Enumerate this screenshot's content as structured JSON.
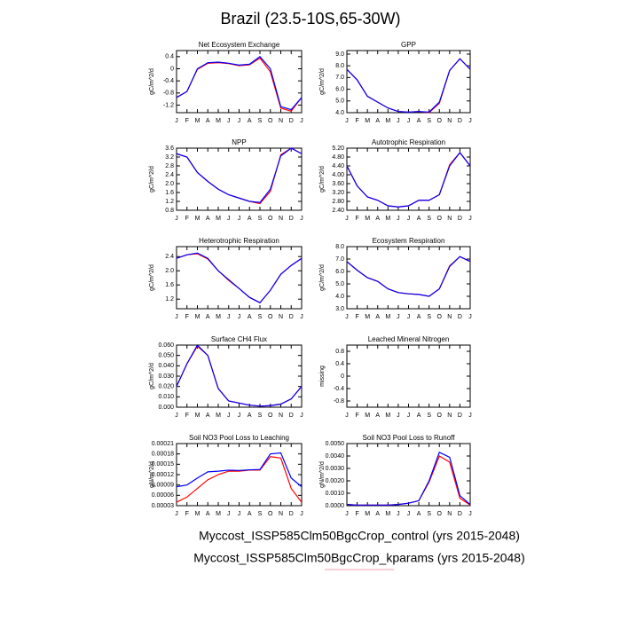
{
  "title": "Brazil (23.5-10S,65-30W)",
  "footer": [
    "Myccost_ISSP585Clm50BgcCrop_control (yrs 2015-2048)",
    "Myccost_ISSP585Clm50BgcCrop_kparams (yrs 2015-2048)"
  ],
  "chart_data": [
    {
      "type": "line",
      "title": "Net Ecosystem Exchange",
      "y_label": "gC/m^2/d",
      "categories": [
        "J",
        "F",
        "M",
        "A",
        "M",
        "J",
        "J",
        "A",
        "S",
        "O",
        "N",
        "D",
        "J"
      ],
      "ylim": [
        -1.45,
        0.6
      ],
      "yticks": [
        0.4,
        0,
        -0.4,
        -0.8,
        -1.2
      ],
      "series": [
        {
          "color": "#0000ff",
          "values": [
            -0.95,
            -0.75,
            0.0,
            0.2,
            0.22,
            0.18,
            0.12,
            0.15,
            0.4,
            0.0,
            -1.25,
            -1.35,
            -0.95
          ]
        },
        {
          "color": "#ff0000",
          "values": [
            -0.95,
            -0.75,
            -0.02,
            0.18,
            0.2,
            0.17,
            0.1,
            0.13,
            0.35,
            -0.1,
            -1.3,
            -1.4,
            -0.95
          ]
        }
      ]
    },
    {
      "type": "line",
      "title": "GPP",
      "y_label": "gC/m^2/d",
      "categories": [
        "J",
        "F",
        "M",
        "A",
        "M",
        "J",
        "J",
        "A",
        "S",
        "O",
        "N",
        "D",
        "J"
      ],
      "ylim": [
        4.0,
        9.3
      ],
      "yticks": [
        {
          "value": 9,
          "label": "9.0"
        },
        {
          "value": 8,
          "label": "8.0"
        },
        {
          "value": 7,
          "label": "7.0"
        },
        {
          "value": 6,
          "label": "6.0"
        },
        {
          "value": 5,
          "label": "5.0"
        },
        {
          "value": 4,
          "label": "4.0"
        }
      ],
      "series": [
        {
          "color": "#0000ff",
          "values": [
            7.7,
            6.8,
            5.4,
            4.9,
            4.4,
            4.1,
            4.05,
            4.1,
            4.05,
            4.9,
            7.6,
            8.6,
            7.7
          ]
        },
        {
          "color": "#ff0000",
          "values": [
            7.7,
            6.8,
            5.4,
            4.9,
            4.4,
            4.1,
            4.05,
            4.1,
            4.0,
            4.8,
            7.6,
            8.6,
            7.7
          ]
        }
      ]
    },
    {
      "type": "line",
      "title": "NPP",
      "y_label": "gC/m^2/d",
      "categories": [
        "J",
        "F",
        "M",
        "A",
        "M",
        "J",
        "J",
        "A",
        "S",
        "O",
        "N",
        "D",
        "J"
      ],
      "ylim": [
        0.8,
        3.6
      ],
      "yticks": [
        3.6,
        3.2,
        2.8,
        2.4,
        {
          "value": 2,
          "label": "2.0"
        },
        1.6,
        1.2,
        0.8
      ],
      "series": [
        {
          "color": "#0000ff",
          "values": [
            3.35,
            3.2,
            2.5,
            2.1,
            1.75,
            1.5,
            1.35,
            1.2,
            1.15,
            1.75,
            3.25,
            3.6,
            3.35
          ]
        },
        {
          "color": "#ff0000",
          "values": [
            3.35,
            3.2,
            2.5,
            2.1,
            1.75,
            1.5,
            1.35,
            1.2,
            1.1,
            1.65,
            3.3,
            3.6,
            3.35
          ]
        }
      ]
    },
    {
      "type": "line",
      "title": "Autotrophic Respiration",
      "y_label": "gC/m^2/d",
      "categories": [
        "J",
        "F",
        "M",
        "A",
        "M",
        "J",
        "J",
        "A",
        "S",
        "O",
        "N",
        "D",
        "J"
      ],
      "ylim": [
        2.4,
        5.2
      ],
      "yticks": [
        {
          "value": 5.2,
          "label": "5.20"
        },
        {
          "value": 4.8,
          "label": "4.80"
        },
        {
          "value": 4.4,
          "label": "4.40"
        },
        {
          "value": 4,
          "label": "4.00"
        },
        {
          "value": 3.6,
          "label": "3.60"
        },
        {
          "value": 3.2,
          "label": "3.20"
        },
        {
          "value": 2.8,
          "label": "2.80"
        },
        {
          "value": 2.4,
          "label": "2.40"
        }
      ],
      "series": [
        {
          "color": "#0000ff",
          "values": [
            4.4,
            3.5,
            3.0,
            2.85,
            2.6,
            2.55,
            2.6,
            2.85,
            2.85,
            3.1,
            4.4,
            5.0,
            4.4
          ]
        },
        {
          "color": "#ff0000",
          "values": [
            4.4,
            3.5,
            3.0,
            2.85,
            2.6,
            2.55,
            2.6,
            2.85,
            2.85,
            3.1,
            4.45,
            5.0,
            4.4
          ]
        }
      ]
    },
    {
      "type": "line",
      "title": "Heterotrophic Respiration",
      "y_label": "gC/m^2/d",
      "categories": [
        "J",
        "F",
        "M",
        "A",
        "M",
        "J",
        "J",
        "A",
        "S",
        "O",
        "N",
        "D",
        "J"
      ],
      "ylim": [
        0.93,
        2.68
      ],
      "yticks": [
        2.4,
        {
          "value": 2,
          "label": "2.0"
        },
        1.6,
        1.2
      ],
      "series": [
        {
          "color": "#0000ff",
          "values": [
            2.35,
            2.45,
            2.5,
            2.35,
            2.0,
            1.75,
            1.5,
            1.25,
            1.1,
            1.45,
            1.9,
            2.15,
            2.35
          ]
        },
        {
          "color": "#ff0000",
          "values": [
            2.35,
            2.45,
            2.48,
            2.33,
            2.0,
            1.73,
            1.5,
            1.25,
            1.1,
            1.45,
            1.9,
            2.15,
            2.35
          ]
        }
      ]
    },
    {
      "type": "line",
      "title": "Ecosystem Respiration",
      "y_label": "gC/m^2/d",
      "categories": [
        "J",
        "F",
        "M",
        "A",
        "M",
        "J",
        "J",
        "A",
        "S",
        "O",
        "N",
        "D",
        "J"
      ],
      "ylim": [
        3.0,
        8.0
      ],
      "yticks": [
        {
          "value": 8,
          "label": "8.0"
        },
        {
          "value": 7,
          "label": "7.0"
        },
        {
          "value": 6,
          "label": "6.0"
        },
        {
          "value": 5,
          "label": "5.0"
        },
        {
          "value": 4,
          "label": "4.0"
        },
        {
          "value": 3,
          "label": "3.0"
        }
      ],
      "series": [
        {
          "color": "#0000ff",
          "values": [
            6.8,
            6.1,
            5.5,
            5.2,
            4.6,
            4.3,
            4.2,
            4.15,
            4.0,
            4.6,
            6.4,
            7.2,
            6.8
          ]
        },
        {
          "color": "#ff0000",
          "values": [
            6.8,
            6.1,
            5.5,
            5.2,
            4.6,
            4.3,
            4.2,
            4.15,
            4.0,
            4.6,
            6.45,
            7.2,
            6.8
          ]
        }
      ]
    },
    {
      "type": "line",
      "title": "Surface CH4 Flux",
      "y_label": "gC/m^2/d",
      "categories": [
        "J",
        "F",
        "M",
        "A",
        "M",
        "J",
        "J",
        "A",
        "S",
        "O",
        "N",
        "D",
        "J"
      ],
      "ylim": [
        0,
        0.06
      ],
      "yticks": [
        {
          "value": 0.06,
          "label": "0.060"
        },
        {
          "value": 0.05,
          "label": "0.050"
        },
        {
          "value": 0.04,
          "label": "0.040"
        },
        {
          "value": 0.03,
          "label": "0.030"
        },
        {
          "value": 0.02,
          "label": "0.020"
        },
        {
          "value": 0.01,
          "label": "0.010"
        },
        {
          "value": 0,
          "label": "0.000"
        }
      ],
      "series": [
        {
          "color": "#0000ff",
          "values": [
            0.02,
            0.042,
            0.06,
            0.05,
            0.018,
            0.006,
            0.004,
            0.002,
            0.001,
            0.0015,
            0.003,
            0.008,
            0.02
          ]
        },
        {
          "color": "#ff0000",
          "values": [
            0.02,
            0.042,
            0.059,
            0.05,
            0.018,
            0.006,
            0.004,
            0.002,
            0.001,
            0.0015,
            0.003,
            0.008,
            0.02
          ]
        }
      ]
    },
    {
      "type": "line",
      "title": "Leached Mineral Nitrogen",
      "y_label": "missing",
      "categories": [
        "J",
        "F",
        "M",
        "A",
        "M",
        "J",
        "J",
        "A",
        "S",
        "O",
        "N",
        "D",
        "J"
      ],
      "ylim": [
        -1,
        1
      ],
      "yticks": [
        0.8,
        0.4,
        0,
        -0.4,
        -0.8
      ],
      "series": []
    },
    {
      "type": "line",
      "title": "Soil NO3 Pool Loss to Leaching",
      "y_label": "gN/m^2/d",
      "categories": [
        "J",
        "F",
        "M",
        "A",
        "M",
        "J",
        "J",
        "A",
        "S",
        "O",
        "N",
        "D",
        "J"
      ],
      "ylim": [
        3e-05,
        0.00021
      ],
      "yticks": [
        0.00021,
        0.00018,
        0.00015,
        0.00012,
        9e-05,
        6e-05,
        3e-05
      ],
      "series": [
        {
          "color": "#0000ff",
          "values": [
            8.5e-05,
            9e-05,
            0.00011,
            0.000128,
            0.00013,
            0.000133,
            0.000132,
            0.000134,
            0.000135,
            0.00018,
            0.000183,
            0.00011,
            8.5e-05
          ]
        },
        {
          "color": "#ff0000",
          "values": [
            4e-05,
            5.5e-05,
            8e-05,
            0.000105,
            0.00012,
            0.00013,
            0.00013,
            0.000133,
            0.000133,
            0.000172,
            0.000168,
            8e-05,
            4e-05
          ]
        }
      ]
    },
    {
      "type": "line",
      "title": "Soil NO3 Pool Loss to Runoff",
      "y_label": "gN/m^2/d",
      "categories": [
        "J",
        "F",
        "M",
        "A",
        "M",
        "J",
        "J",
        "A",
        "S",
        "O",
        "N",
        "D",
        "J"
      ],
      "ylim": [
        0,
        0.005
      ],
      "yticks": [
        {
          "value": 0.005,
          "label": "0.0050"
        },
        {
          "value": 0.004,
          "label": "0.0040"
        },
        {
          "value": 0.003,
          "label": "0.0030"
        },
        {
          "value": 0.002,
          "label": "0.0020"
        },
        {
          "value": 0.001,
          "label": "0.0010"
        },
        {
          "value": 0,
          "label": "0.0000"
        }
      ],
      "series": [
        {
          "color": "#0000ff",
          "values": [
            0.0001,
            5e-05,
            5e-05,
            5e-05,
            5e-05,
            0.0001,
            0.0002,
            0.0004,
            0.002,
            0.0043,
            0.0039,
            0.0008,
            0.0001
          ]
        },
        {
          "color": "#ff0000",
          "values": [
            0.0001,
            5e-05,
            5e-05,
            5e-05,
            5e-05,
            0.0001,
            0.0002,
            0.0004,
            0.0019,
            0.004,
            0.0035,
            0.0006,
            5e-05
          ]
        }
      ]
    }
  ]
}
